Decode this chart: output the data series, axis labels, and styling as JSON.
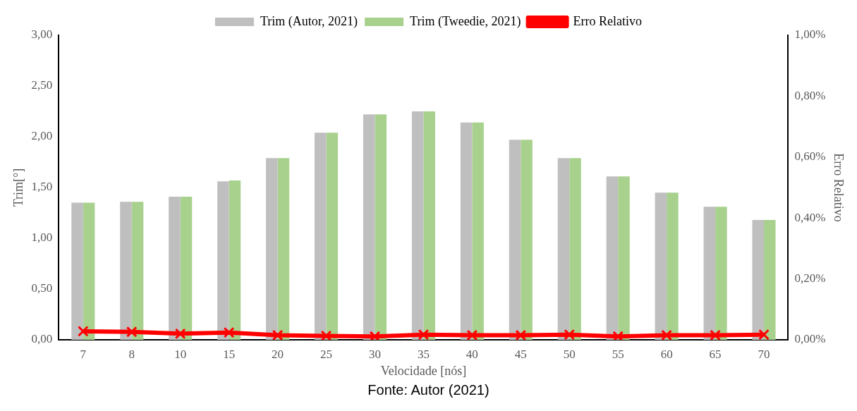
{
  "chart_data": {
    "type": "bar",
    "xlabel": "Velocidade [nós]",
    "ylabel": "Trim[°]",
    "y2label": "Erro Relativo",
    "categories": [
      "7",
      "8",
      "10",
      "15",
      "20",
      "25",
      "30",
      "35",
      "40",
      "45",
      "50",
      "55",
      "60",
      "65",
      "70"
    ],
    "series": [
      {
        "name": "Trim (Autor, 2021)",
        "color": "#bfbfbf",
        "values": [
          1.35,
          1.36,
          1.41,
          1.56,
          1.79,
          2.04,
          2.22,
          2.25,
          2.14,
          1.97,
          1.79,
          1.61,
          1.45,
          1.31,
          1.18
        ]
      },
      {
        "name": "Trim (Tweedie, 2021)",
        "color": "#a9d18e",
        "values": [
          1.35,
          1.36,
          1.41,
          1.57,
          1.79,
          2.04,
          2.22,
          2.25,
          2.14,
          1.97,
          1.79,
          1.61,
          1.45,
          1.31,
          1.18
        ]
      },
      {
        "name": "Erro Relativo",
        "type": "line",
        "axis": "y2",
        "color": "#ff0000",
        "marker": "cross",
        "values": [
          0.028,
          0.026,
          0.02,
          0.024,
          0.015,
          0.013,
          0.011,
          0.017,
          0.015,
          0.015,
          0.017,
          0.011,
          0.015,
          0.015,
          0.017
        ]
      }
    ],
    "ylim": [
      0,
      3
    ],
    "yticks": [
      {
        "value": 0,
        "label": "0,00"
      },
      {
        "value": 0.5,
        "label": "0,50"
      },
      {
        "value": 1,
        "label": "1,00"
      },
      {
        "value": 1.5,
        "label": "1,50"
      },
      {
        "value": 2,
        "label": "2,00"
      },
      {
        "value": 2.5,
        "label": "2,50"
      },
      {
        "value": 3,
        "label": "3,00"
      }
    ],
    "y2lim": [
      0,
      1
    ],
    "y2ticks": [
      {
        "value": 0,
        "label": "0,00%"
      },
      {
        "value": 0.2,
        "label": "0,20%"
      },
      {
        "value": 0.4,
        "label": "0,40%"
      },
      {
        "value": 0.6,
        "label": "0,60%"
      },
      {
        "value": 0.8,
        "label": "0,80%"
      },
      {
        "value": 1,
        "label": "1,00%"
      }
    ],
    "grid": false,
    "legend": "top",
    "annotations": [
      "Fonte: Autor (2021)"
    ]
  }
}
